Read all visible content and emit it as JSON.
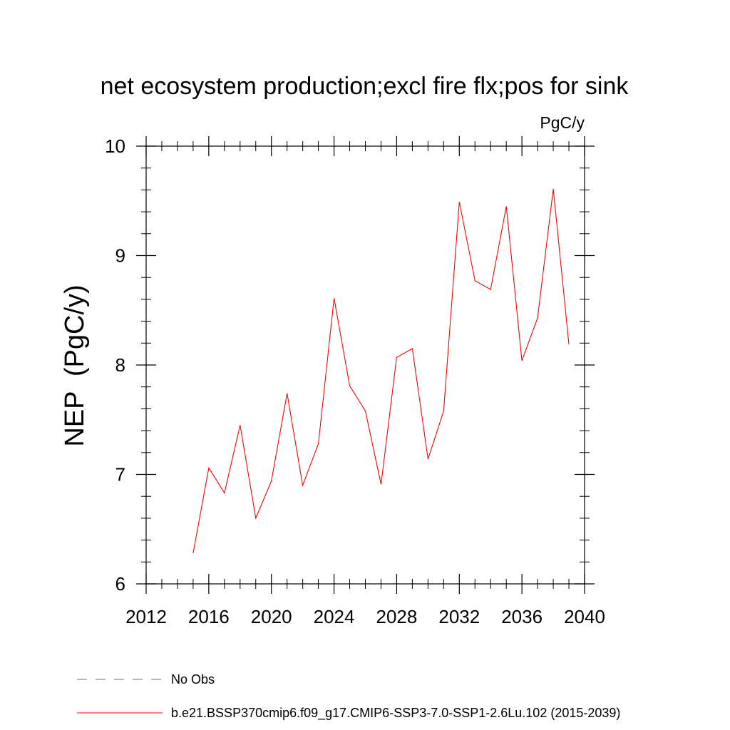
{
  "chart_data": {
    "type": "line",
    "title": "net ecosystem production;excl fire flx;pos for sink",
    "units": "PgC/y",
    "ylabel": "NEP  (PgC/y)",
    "xlabel": "",
    "xlim": [
      2012,
      2040
    ],
    "ylim": [
      6,
      10
    ],
    "xticks": [
      2012,
      2016,
      2020,
      2024,
      2028,
      2032,
      2036,
      2040
    ],
    "yticks": [
      6,
      7,
      8,
      9,
      10
    ],
    "x_minor_step": 1,
    "y_minor_step": 0.2,
    "grid": false,
    "legend_position": "bottom",
    "series": [
      {
        "name": "b.e21.BSSP370cmip6.f09_g17.CMIP6-SSP3-7.0-SSP1-2.6Lu.102 (2015-2039)",
        "color": "#ff0000",
        "style": "solid",
        "x": [
          2015,
          2016,
          2017,
          2018,
          2019,
          2020,
          2021,
          2022,
          2023,
          2024,
          2025,
          2026,
          2027,
          2028,
          2029,
          2030,
          2031,
          2032,
          2033,
          2034,
          2035,
          2036,
          2037,
          2038,
          2039
        ],
        "values": [
          6.28,
          7.06,
          6.83,
          7.45,
          6.6,
          6.94,
          7.74,
          6.9,
          7.28,
          8.61,
          7.81,
          7.58,
          6.91,
          8.07,
          8.15,
          7.14,
          7.58,
          9.49,
          8.77,
          8.69,
          9.45,
          8.04,
          8.43,
          9.61,
          8.19
        ]
      }
    ],
    "legend": [
      {
        "label": "No Obs",
        "color": "#6b5fa6",
        "style": "dashed"
      },
      {
        "label": "b.e21.BSSP370cmip6.f09_g17.CMIP6-SSP3-7.0-SSP1-2.6Lu.102 (2015-2039)",
        "color": "#ff0000",
        "style": "solid"
      }
    ]
  }
}
